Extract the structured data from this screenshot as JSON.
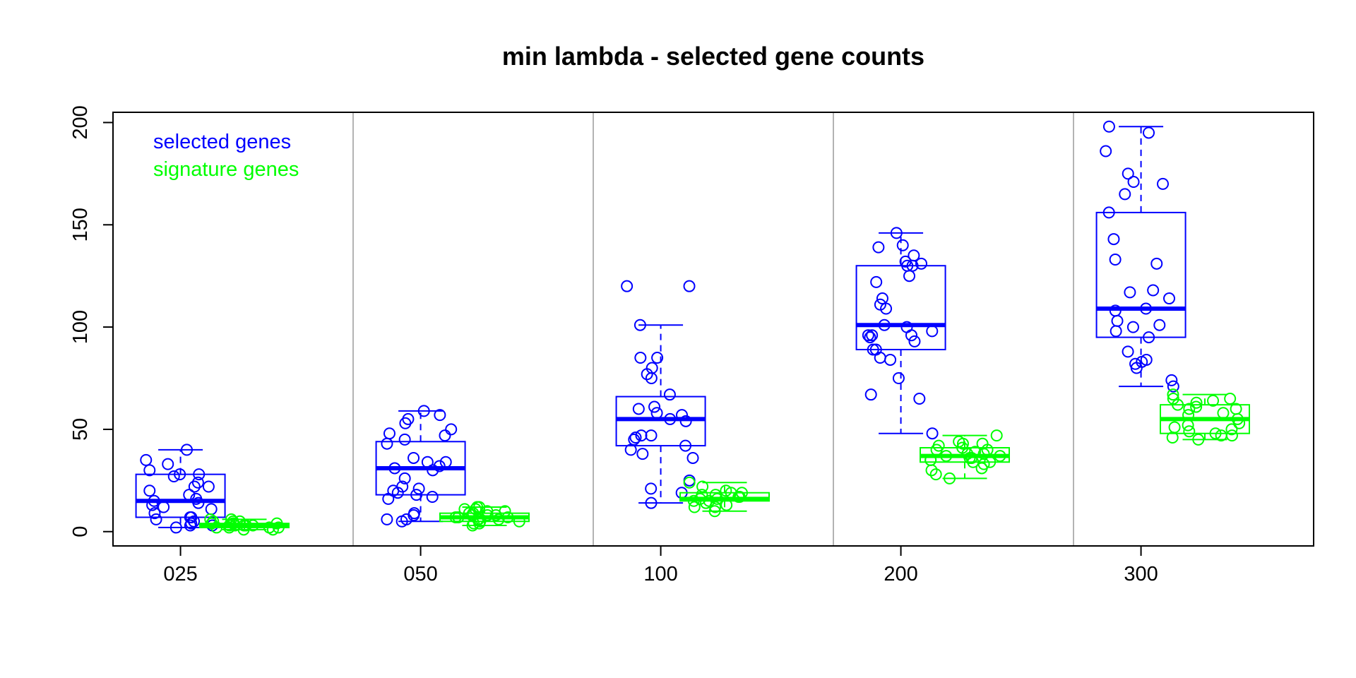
{
  "chart_data": {
    "type": "box",
    "title": "min lambda - selected gene counts",
    "xlabel": "",
    "ylabel": "",
    "ylim": [
      -7,
      205
    ],
    "y_ticks": [
      0,
      50,
      100,
      150,
      200
    ],
    "groups": [
      "025",
      "050",
      "100",
      "200",
      "300"
    ],
    "grid": "vertical separators between groups",
    "legend": {
      "position": "top-left",
      "entries": [
        {
          "label": "selected genes",
          "color": "#0000ff"
        },
        {
          "label": "signature genes",
          "color": "#00ff00"
        }
      ]
    },
    "series": [
      {
        "name": "selected genes",
        "color": "#0000ff",
        "boxes": [
          {
            "group": "025",
            "min": 2,
            "q1": 7,
            "median": 15,
            "q3": 28,
            "max": 40
          },
          {
            "group": "050",
            "min": 5,
            "q1": 18,
            "median": 31,
            "q3": 44,
            "max": 59
          },
          {
            "group": "100",
            "min": 14,
            "q1": 42,
            "median": 55,
            "q3": 66,
            "max": 101
          },
          {
            "group": "200",
            "min": 48,
            "q1": 89,
            "median": 101,
            "q3": 130,
            "max": 146
          },
          {
            "group": "300",
            "min": 71,
            "q1": 95,
            "median": 109,
            "q3": 156,
            "max": 198
          }
        ],
        "points": [
          {
            "group": "025",
            "values": [
              2,
              3,
              3,
              4,
              5,
              6,
              7,
              7,
              9,
              11,
              12,
              13,
              14,
              15,
              16,
              18,
              20,
              22,
              22,
              24,
              27,
              28,
              28,
              30,
              33,
              35,
              40
            ]
          },
          {
            "group": "050",
            "values": [
              5,
              6,
              6,
              8,
              9,
              16,
              17,
              18,
              19,
              20,
              21,
              22,
              26,
              30,
              31,
              32,
              34,
              34,
              36,
              43,
              45,
              47,
              48,
              50,
              53,
              55,
              57,
              59
            ]
          },
          {
            "group": "100",
            "values": [
              14,
              19,
              21,
              25,
              36,
              38,
              40,
              42,
              45,
              46,
              47,
              47,
              54,
              55,
              57,
              58,
              60,
              61,
              67,
              75,
              77,
              80,
              85,
              85,
              101,
              120,
              120
            ]
          },
          {
            "group": "200",
            "values": [
              48,
              65,
              67,
              75,
              84,
              85,
              89,
              89,
              93,
              95,
              96,
              96,
              96,
              98,
              100,
              101,
              109,
              111,
              114,
              122,
              125,
              130,
              130,
              131,
              132,
              135,
              139,
              140,
              146
            ]
          },
          {
            "group": "300",
            "values": [
              71,
              74,
              80,
              82,
              83,
              84,
              88,
              95,
              98,
              100,
              101,
              103,
              108,
              109,
              114,
              117,
              118,
              131,
              133,
              143,
              156,
              165,
              170,
              171,
              175,
              186,
              195,
              198
            ]
          }
        ]
      },
      {
        "name": "signature genes",
        "color": "#00ff00",
        "boxes": [
          {
            "group": "025",
            "min": 1,
            "q1": 2,
            "median": 3,
            "q3": 4,
            "max": 6
          },
          {
            "group": "050",
            "min": 3,
            "q1": 5,
            "median": 7,
            "q3": 9,
            "max": 12
          },
          {
            "group": "100",
            "min": 10,
            "q1": 15,
            "median": 16,
            "q3": 19,
            "max": 24
          },
          {
            "group": "200",
            "min": 26,
            "q1": 34,
            "median": 37,
            "q3": 41,
            "max": 47
          },
          {
            "group": "300",
            "min": 45,
            "q1": 48,
            "median": 55,
            "q3": 62,
            "max": 67
          }
        ],
        "points": [
          {
            "group": "025",
            "values": [
              1,
              1,
              2,
              2,
              2,
              2,
              3,
              3,
              3,
              3,
              3,
              4,
              4,
              4,
              4,
              5,
              5,
              5,
              6,
              6
            ]
          },
          {
            "group": "050",
            "values": [
              3,
              4,
              4,
              5,
              5,
              6,
              6,
              6,
              7,
              7,
              7,
              8,
              8,
              8,
              9,
              9,
              10,
              10,
              11,
              11,
              12,
              12
            ]
          },
          {
            "group": "100",
            "values": [
              10,
              12,
              12,
              13,
              14,
              15,
              15,
              16,
              16,
              17,
              17,
              18,
              18,
              19,
              19,
              20,
              22,
              24
            ]
          },
          {
            "group": "200",
            "values": [
              26,
              28,
              30,
              31,
              33,
              34,
              34,
              35,
              35,
              36,
              36,
              37,
              37,
              38,
              38,
              39,
              40,
              40,
              41,
              42,
              43,
              43,
              44,
              47
            ]
          },
          {
            "group": "300",
            "values": [
              45,
              46,
              47,
              47,
              48,
              49,
              50,
              51,
              52,
              53,
              55,
              57,
              58,
              60,
              60,
              61,
              62,
              63,
              64,
              65,
              65,
              67
            ]
          }
        ]
      }
    ]
  }
}
